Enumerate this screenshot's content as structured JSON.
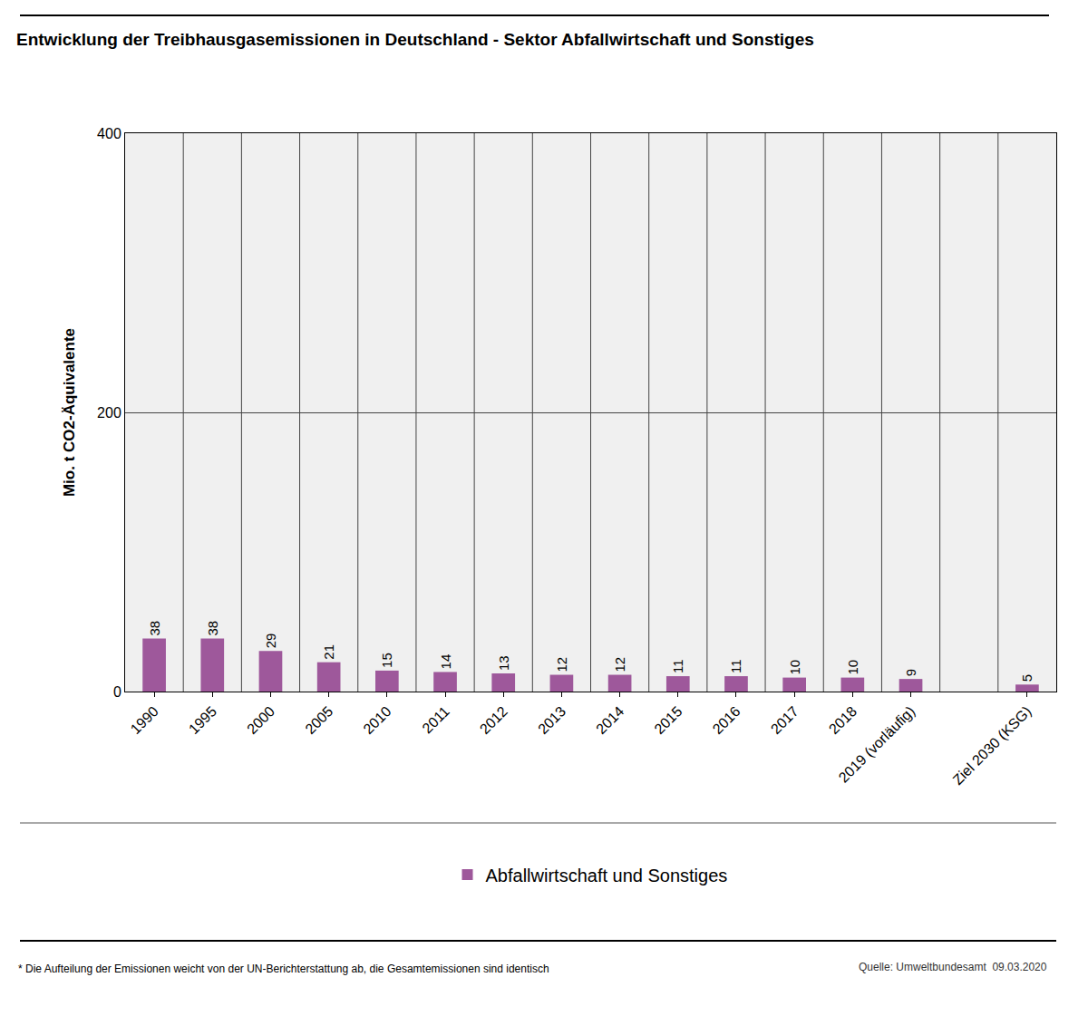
{
  "chart_data": {
    "type": "bar",
    "title": "Entwicklung der Treibhausgasemissionen in Deutschland - Sektor Abfallwirtschaft und Sonstiges",
    "y_label": "Mio. t CO2-Äquivalente",
    "categories": [
      "1990",
      "1995",
      "2000",
      "2005",
      "2010",
      "2011",
      "2012",
      "2013",
      "2014",
      "2015",
      "2016",
      "2017",
      "2018",
      "2019 (vorläufig)",
      null,
      "Ziel 2030 (KSG)"
    ],
    "series": [
      {
        "name": "Abfallwirtschaft und Sonstiges",
        "color": "#9e589b",
        "values": [
          38,
          38,
          29,
          21,
          15,
          14,
          13,
          12,
          12,
          11,
          11,
          10,
          10,
          9,
          null,
          5
        ]
      }
    ],
    "ylim": [
      0,
      400
    ],
    "yticks": [
      0,
      200,
      400
    ],
    "grid": true,
    "legend": "bottom",
    "data_labels": true,
    "note": "* Die Aufteilung der Emissionen weicht von der UN-Berichterstattung ab, die Gesamtemissionen sind identisch",
    "source": "Quelle: Umweltbundesamt  09.03.2020"
  }
}
